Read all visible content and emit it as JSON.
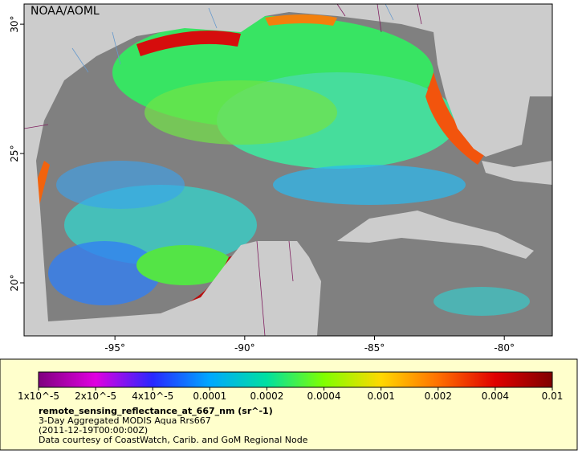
{
  "map": {
    "watermark": "NOAA/AOML",
    "lonlim": [
      -98.5,
      -78.15
    ],
    "latlim": [
      17.95,
      30.78
    ],
    "lon_ticks": [
      {
        "value": -95,
        "label": "-95°"
      },
      {
        "value": -90,
        "label": "-90°"
      },
      {
        "value": -85,
        "label": "-85°"
      },
      {
        "value": -80,
        "label": "-80°"
      }
    ],
    "lat_ticks": [
      {
        "value": 20,
        "label": "20°"
      },
      {
        "value": 25,
        "label": "25°"
      },
      {
        "value": 30,
        "label": "30°"
      }
    ]
  },
  "legend": {
    "colorbar": {
      "colors": [
        "#7f007f",
        "#e000e0",
        "#2828ff",
        "#00a8ff",
        "#00e0a0",
        "#80ff00",
        "#ffd800",
        "#ff7000",
        "#e00000",
        "#800000"
      ],
      "ticks": [
        {
          "value": 1e-05,
          "label": "1x10^-5"
        },
        {
          "value": 2e-05,
          "label": "2x10^-5"
        },
        {
          "value": 4e-05,
          "label": "4x10^-5"
        },
        0.0001,
        0.0002,
        0.0004,
        0.001,
        0.002,
        0.004,
        0.01
      ]
    },
    "variable": "remote_sensing_reflectance_at_667_nm (sr^-1)",
    "lines": [
      "3-Day Aggregated MODIS Aqua Rrs667",
      "(2011-12-19T00:00:00Z)",
      "Data courtesy of CoastWatch, Carib. and GoM Regional Node"
    ]
  }
}
